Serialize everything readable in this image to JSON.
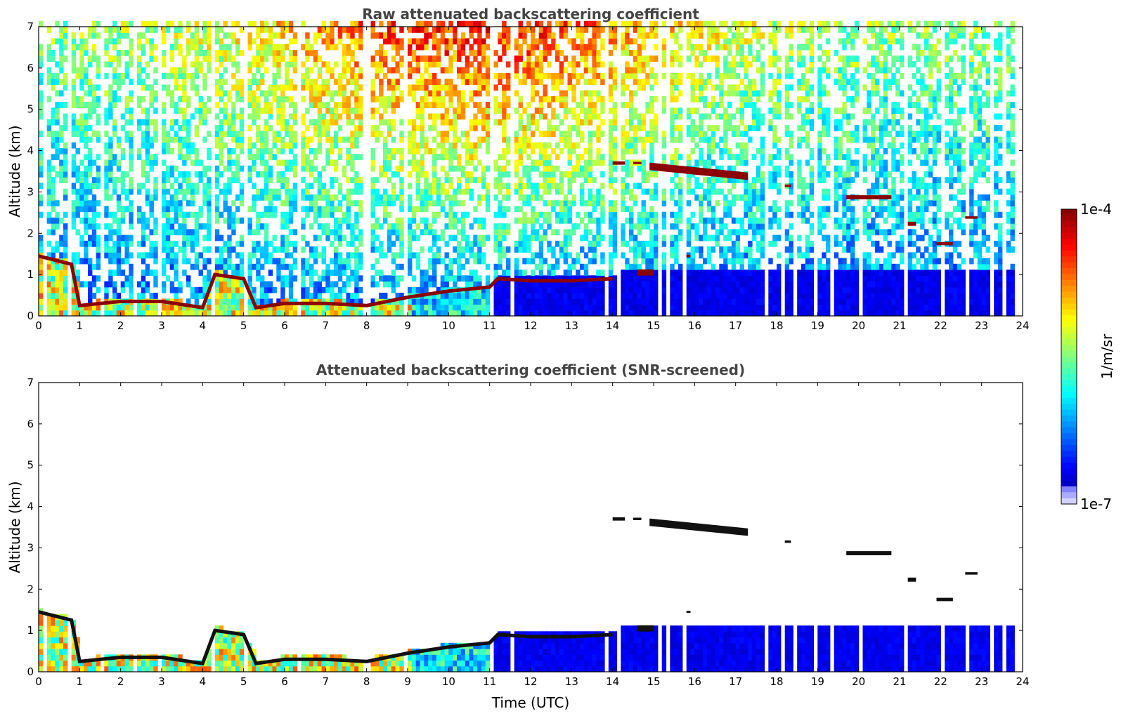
{
  "chart_data": [
    {
      "type": "heatmap",
      "title": "Raw attenuated backscattering coefficient",
      "xlabel": "",
      "ylabel": "Altitude (km)",
      "xlim": [
        0,
        24
      ],
      "ylim": [
        0,
        7
      ],
      "xticks": [
        "0",
        "1",
        "2",
        "3",
        "4",
        "5",
        "6",
        "7",
        "8",
        "9",
        "10",
        "11",
        "12",
        "13",
        "14",
        "15",
        "16",
        "17",
        "18",
        "19",
        "20",
        "21",
        "22",
        "23",
        "24"
      ],
      "yticks": [
        "0",
        "1",
        "2",
        "3",
        "4",
        "5",
        "6",
        "7"
      ],
      "mode": "raw",
      "boundary_layer_top_km": [
        [
          0,
          1.45
        ],
        [
          0.8,
          1.25
        ],
        [
          1.0,
          0.25
        ],
        [
          2.0,
          0.35
        ],
        [
          3.0,
          0.35
        ],
        [
          4.0,
          0.2
        ],
        [
          4.3,
          1.0
        ],
        [
          5.0,
          0.9
        ],
        [
          5.3,
          0.2
        ],
        [
          6.0,
          0.3
        ],
        [
          7.0,
          0.3
        ],
        [
          8.0,
          0.25
        ],
        [
          9.0,
          0.45
        ],
        [
          10.0,
          0.6
        ],
        [
          11.0,
          0.7
        ],
        [
          11.2,
          0.9
        ],
        [
          12.0,
          0.85
        ],
        [
          13.0,
          0.85
        ],
        [
          14.0,
          0.9
        ]
      ],
      "cloud_layers": [
        {
          "x": [
            14.0,
            14.3
          ],
          "alt_km": 3.7,
          "thick_km": 0.08
        },
        {
          "x": [
            14.5,
            14.7
          ],
          "alt_km": 3.7,
          "thick_km": 0.06
        },
        {
          "x": [
            14.9,
            17.3
          ],
          "alt_km": 3.62,
          "alt_end_km": 3.38,
          "thick_km": 0.18
        },
        {
          "x": [
            18.2,
            18.35
          ],
          "alt_km": 3.15,
          "thick_km": 0.06
        },
        {
          "x": [
            19.7,
            20.8
          ],
          "alt_km": 2.87,
          "thick_km": 0.1
        },
        {
          "x": [
            21.2,
            21.4
          ],
          "alt_km": 2.23,
          "thick_km": 0.1
        },
        {
          "x": [
            21.9,
            22.3
          ],
          "alt_km": 1.75,
          "thick_km": 0.08
        },
        {
          "x": [
            22.6,
            22.9
          ],
          "alt_km": 2.38,
          "thick_km": 0.06
        },
        {
          "x": [
            14.6,
            15.0
          ],
          "alt_km": 1.05,
          "thick_km": 0.15
        },
        {
          "x": [
            15.8,
            15.9
          ],
          "alt_km": 1.45,
          "thick_km": 0.05
        }
      ],
      "data_gaps_utc": [
        0.1,
        0.7,
        1.47,
        1.55,
        2.3,
        2.9,
        4.2,
        5.0,
        6.3,
        7.9,
        8.0,
        8.9,
        11.0,
        11.5,
        13.82,
        14.1,
        15.1,
        15.3,
        15.7,
        17.7,
        18.1,
        18.4,
        18.9,
        19.3,
        20.0,
        21.1,
        22.0,
        22.6,
        23.2,
        23.5
      ]
    },
    {
      "type": "heatmap",
      "title": "Attenuated backscattering coefficient (SNR-screened)",
      "xlabel": "Time (UTC)",
      "ylabel": "Altitude (km)",
      "xlim": [
        0,
        24
      ],
      "ylim": [
        0,
        7
      ],
      "xticks": [
        "0",
        "1",
        "2",
        "3",
        "4",
        "5",
        "6",
        "7",
        "8",
        "9",
        "10",
        "11",
        "12",
        "13",
        "14",
        "15",
        "16",
        "17",
        "18",
        "19",
        "20",
        "21",
        "22",
        "23",
        "24"
      ],
      "yticks": [
        "0",
        "1",
        "2",
        "3",
        "4",
        "5",
        "6",
        "7"
      ],
      "mode": "screened"
    }
  ],
  "colorbar": {
    "label": "1/m/sr",
    "max_label": "1e-4",
    "min_label": "1e-7",
    "colormap": "jet",
    "scale": "log",
    "range": [
      1e-07,
      0.0001
    ]
  }
}
